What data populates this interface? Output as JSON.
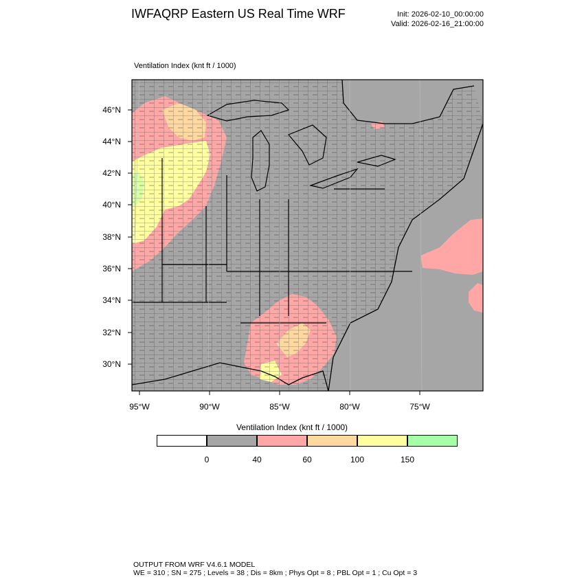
{
  "header": {
    "title": "IWFAQRP Eastern US Real Time WRF",
    "init": "Init: 2026-02-10_00:00:00",
    "valid": "Valid: 2026-02-16_21:00:00"
  },
  "map": {
    "subtitle": "Ventilation Index   (knt ft / 1000)",
    "lat_labels": [
      "46°N",
      "44°N",
      "42°N",
      "40°N",
      "38°N",
      "36°N",
      "34°N",
      "32°N",
      "30°N"
    ],
    "lon_labels": [
      "95°W",
      "90°W",
      "85°W",
      "80°W",
      "75°W"
    ]
  },
  "colorbar": {
    "title": "Ventilation Index  (knt ft / 1000)",
    "colors": [
      "#ffffff",
      "#a6a6a6",
      "#ffa6a6",
      "#ffd8a0",
      "#ffff9f",
      "#a6ffa6"
    ],
    "labels": [
      "0",
      "40",
      "60",
      "100",
      "150"
    ]
  },
  "footer": {
    "line1": "OUTPUT FROM WRF V4.6.1 MODEL",
    "line2": "WE = 310 ; SN = 275 ; Levels = 38 ; Dis = 8km ; Phys Opt = 8 ; PBL Opt = 1 ; Cu Opt = 3"
  }
}
